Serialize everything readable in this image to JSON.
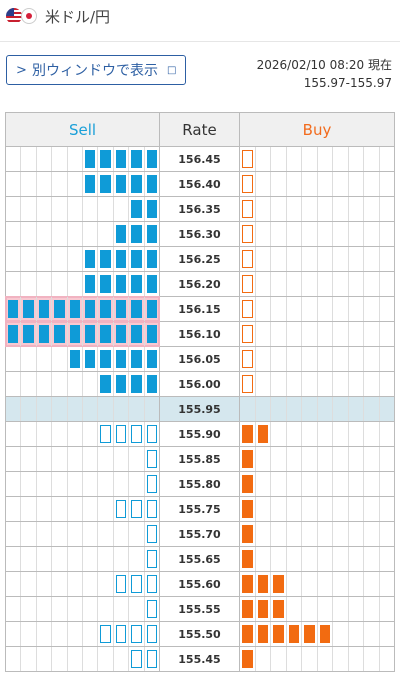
{
  "header": {
    "pair": "米ドル/円",
    "flag_left": "us-flag-icon",
    "flag_right": "jp-flag-icon"
  },
  "window_button": {
    "label": "別ウィンドウで表示",
    "chevron": ">",
    "window_icon": "□"
  },
  "timestamp": {
    "line1": "2026/02/10 08:20 現在",
    "line2": "155.97-155.97"
  },
  "colors": {
    "sell": "#0f9bd7",
    "buy": "#f26b11",
    "mid_row": "#d5e7ee",
    "highlight": "#f8c9d2"
  },
  "table": {
    "headers": {
      "sell": "Sell",
      "rate": "Rate",
      "buy": "Buy"
    },
    "columns_per_side": 10,
    "rows": [
      {
        "rate": "156.45",
        "sell": 5,
        "sell_style": "full",
        "buy": 1,
        "buy_style": "outline"
      },
      {
        "rate": "156.40",
        "sell": 5,
        "sell_style": "full",
        "buy": 1,
        "buy_style": "outline"
      },
      {
        "rate": "156.35",
        "sell": 2,
        "sell_style": "full",
        "buy": 1,
        "buy_style": "outline"
      },
      {
        "rate": "156.30",
        "sell": 3,
        "sell_style": "full",
        "buy": 1,
        "buy_style": "outline"
      },
      {
        "rate": "156.25",
        "sell": 5,
        "sell_style": "full",
        "buy": 1,
        "buy_style": "outline"
      },
      {
        "rate": "156.20",
        "sell": 5,
        "sell_style": "full",
        "buy": 1,
        "buy_style": "outline"
      },
      {
        "rate": "156.15",
        "sell": 10,
        "sell_style": "full",
        "buy": 1,
        "buy_style": "outline",
        "highlight": true
      },
      {
        "rate": "156.10",
        "sell": 10,
        "sell_style": "full",
        "buy": 1,
        "buy_style": "outline",
        "highlight": true
      },
      {
        "rate": "156.05",
        "sell": 6,
        "sell_style": "full",
        "buy": 1,
        "buy_style": "outline"
      },
      {
        "rate": "156.00",
        "sell": 4,
        "sell_style": "full",
        "buy": 1,
        "buy_style": "outline"
      },
      {
        "rate": "155.95",
        "sell": 0,
        "sell_style": "none",
        "buy": 0,
        "buy_style": "none",
        "current": true
      },
      {
        "rate": "155.90",
        "sell": 4,
        "sell_style": "outline",
        "buy": 2,
        "buy_style": "full"
      },
      {
        "rate": "155.85",
        "sell": 1,
        "sell_style": "outline",
        "buy": 1,
        "buy_style": "full"
      },
      {
        "rate": "155.80",
        "sell": 1,
        "sell_style": "outline",
        "buy": 1,
        "buy_style": "full"
      },
      {
        "rate": "155.75",
        "sell": 3,
        "sell_style": "outline",
        "buy": 1,
        "buy_style": "full"
      },
      {
        "rate": "155.70",
        "sell": 1,
        "sell_style": "outline",
        "buy": 1,
        "buy_style": "full"
      },
      {
        "rate": "155.65",
        "sell": 1,
        "sell_style": "outline",
        "buy": 1,
        "buy_style": "full"
      },
      {
        "rate": "155.60",
        "sell": 3,
        "sell_style": "outline",
        "buy": 3,
        "buy_style": "full"
      },
      {
        "rate": "155.55",
        "sell": 1,
        "sell_style": "outline",
        "buy": 3,
        "buy_style": "full"
      },
      {
        "rate": "155.50",
        "sell": 4,
        "sell_style": "outline",
        "buy": 6,
        "buy_style": "full"
      },
      {
        "rate": "155.45",
        "sell": 2,
        "sell_style": "outline",
        "buy": 1,
        "buy_style": "full"
      }
    ]
  }
}
